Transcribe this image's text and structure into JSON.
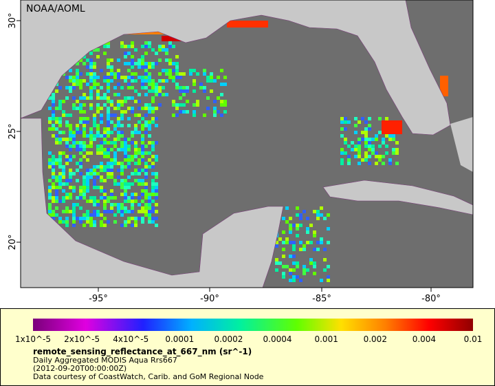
{
  "map": {
    "credit": "NOAA/AOML",
    "lat_labels": [
      "30°",
      "25°",
      "20°"
    ],
    "lon_labels": [
      "-95°",
      "-90°",
      "-85°",
      "-80°"
    ]
  },
  "legend": {
    "ticks": [
      "1x10^-5",
      "2x10^-5",
      "4x10^-5",
      "0.0001",
      "0.0002",
      "0.0004",
      "0.001",
      "0.002",
      "0.004",
      "0.01"
    ],
    "title": "remote_sensing_reflectance_at_667_nm (sr^-1)",
    "lines": [
      "Daily Aggregated MODIS Aqua Rrs667",
      "(2012-09-20T00:00:00Z)",
      "Data courtesy of CoastWatch, Carib. and GoM Regional Node"
    ]
  }
}
